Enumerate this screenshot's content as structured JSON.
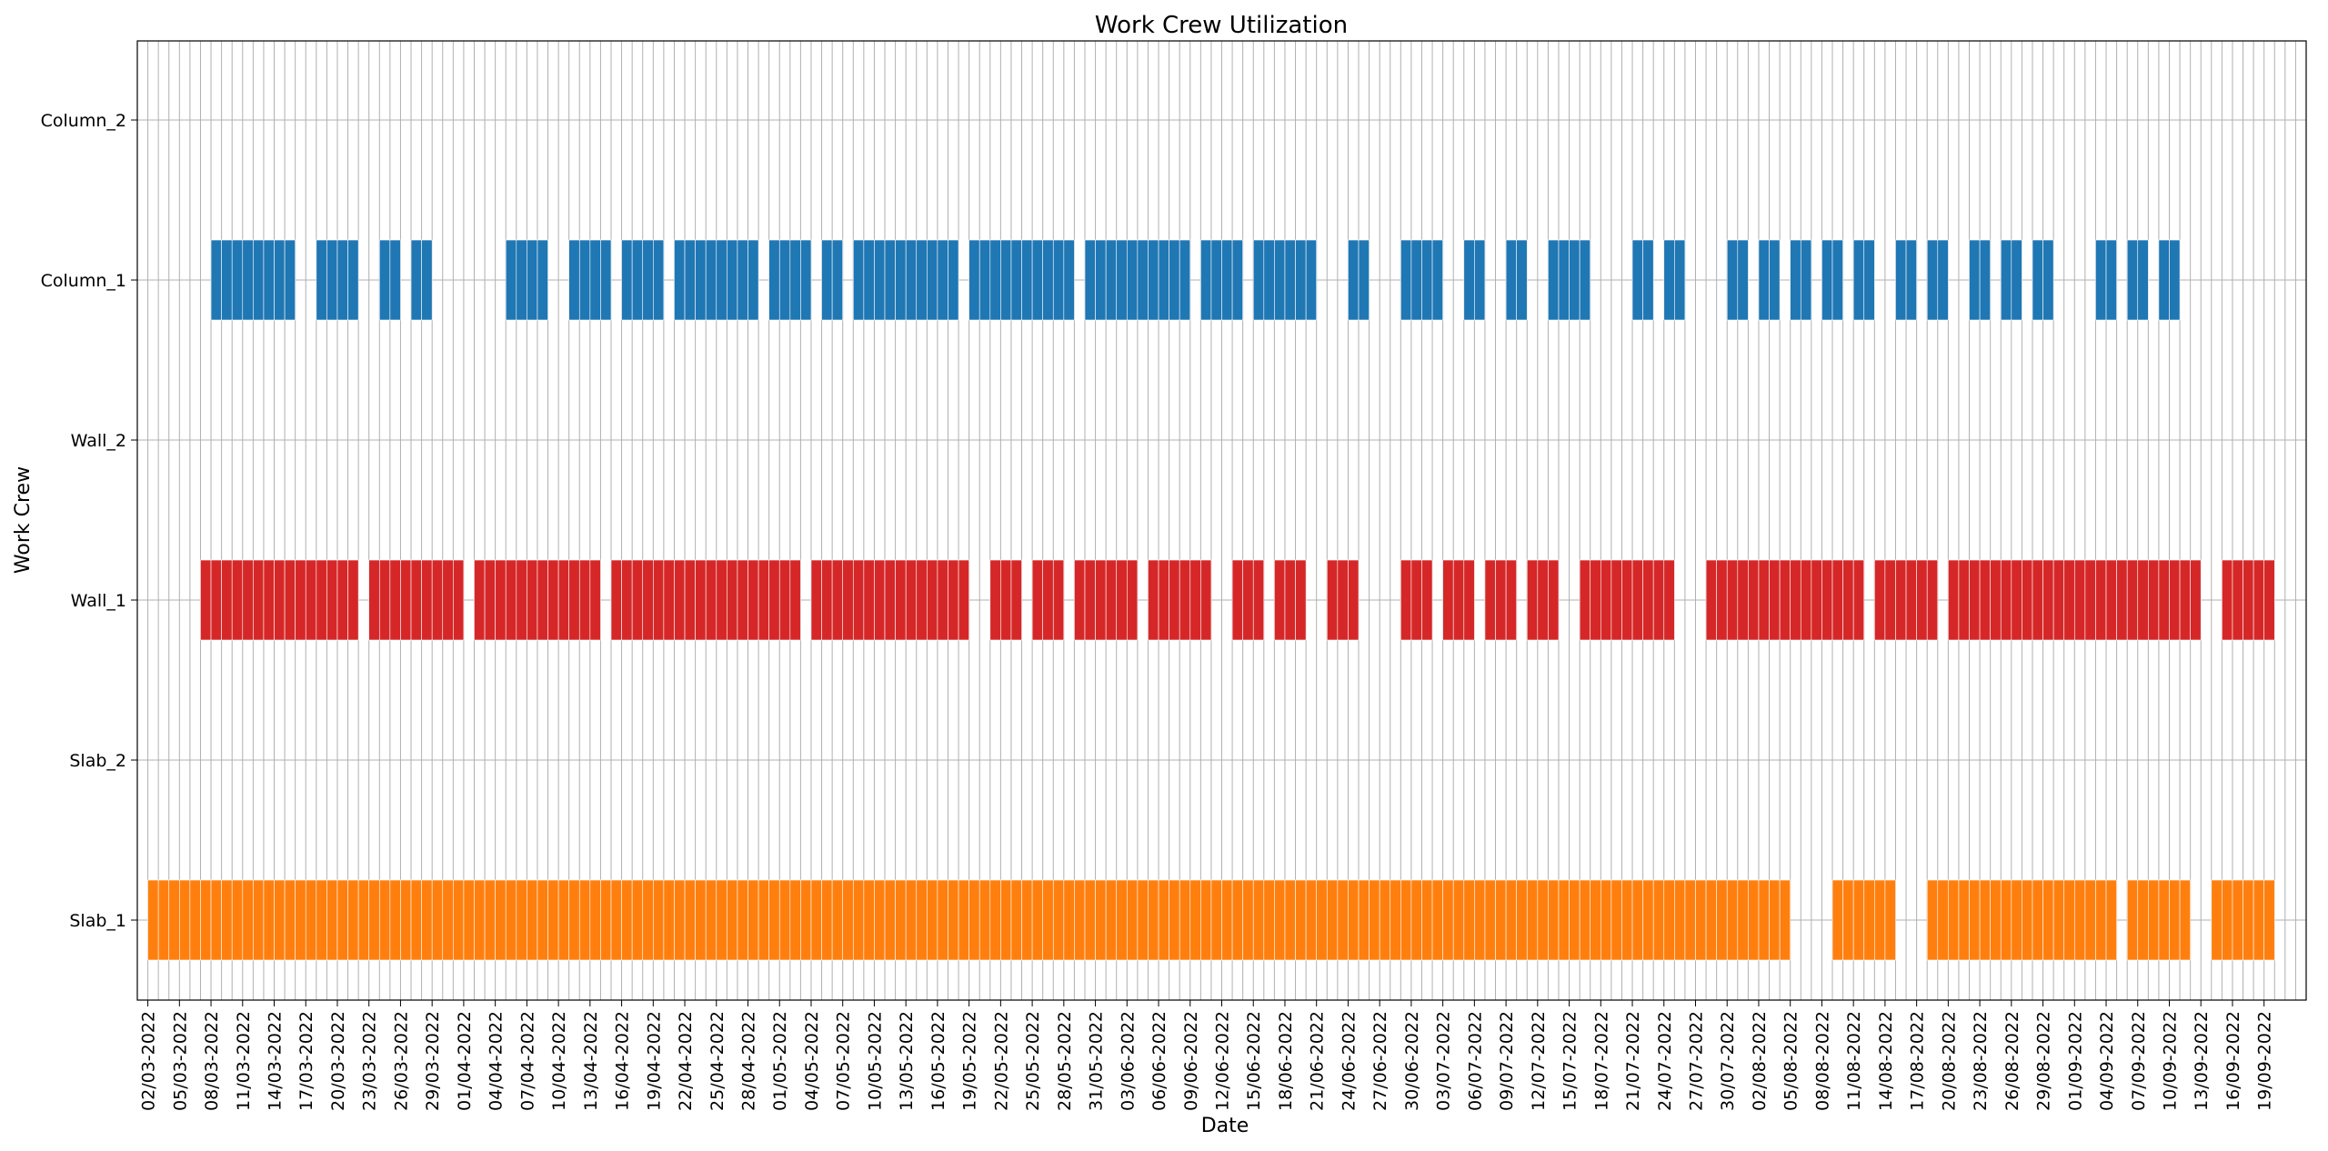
{
  "chart_data": {
    "type": "bar",
    "subtype": "timeline-gantt",
    "title": "Work Crew Utilization",
    "xlabel": "Date",
    "ylabel": "Work Crew",
    "start_date": "2022-03-02",
    "xlim": [
      "2022-03-01",
      "2022-09-23"
    ],
    "x_tick_step_days": 3,
    "x_tick_labels": [
      "02/03-2022",
      "05/03-2022",
      "08/03-2022",
      "11/03-2022",
      "14/03-2022",
      "17/03-2022",
      "20/03-2022",
      "23/03-2022",
      "26/03-2022",
      "29/03-2022",
      "01/04-2022",
      "04/04-2022",
      "07/04-2022",
      "10/04-2022",
      "13/04-2022",
      "16/04-2022",
      "19/04-2022",
      "22/04-2022",
      "25/04-2022",
      "28/04-2022",
      "01/05-2022",
      "04/05-2022",
      "07/05-2022",
      "10/05-2022",
      "13/05-2022",
      "16/05-2022",
      "19/05-2022",
      "22/05-2022",
      "25/05-2022",
      "28/05-2022",
      "31/05-2022",
      "03/06-2022",
      "06/06-2022",
      "09/06-2022",
      "12/06-2022",
      "15/06-2022",
      "18/06-2022",
      "21/06-2022",
      "24/06-2022",
      "27/06-2022",
      "30/06-2022",
      "03/07-2022",
      "06/07-2022",
      "09/07-2022",
      "12/07-2022",
      "15/07-2022",
      "18/07-2022",
      "21/07-2022",
      "24/07-2022",
      "27/07-2022",
      "30/07-2022",
      "02/08-2022",
      "05/08-2022",
      "08/08-2022",
      "11/08-2022",
      "14/08-2022",
      "17/08-2022",
      "20/08-2022",
      "23/08-2022",
      "26/08-2022",
      "29/08-2022",
      "01/09-2022",
      "04/09-2022",
      "07/09-2022",
      "10/09-2022",
      "13/09-2022",
      "16/09-2022",
      "19/09-2022"
    ],
    "categories": [
      "Slab_1",
      "Slab_2",
      "Wall_1",
      "Wall_2",
      "Column_1",
      "Column_2"
    ],
    "grid": true,
    "series": [
      {
        "name": "Slab_1",
        "color": "#ff7f0e",
        "ranges": [
          [
            0,
            156
          ],
          [
            160,
            166
          ],
          [
            169,
            187
          ],
          [
            188,
            194
          ],
          [
            196,
            202
          ]
        ]
      },
      {
        "name": "Slab_2",
        "color": "#ff7f0e",
        "ranges": []
      },
      {
        "name": "Wall_1",
        "color": "#d62728",
        "ranges": [
          [
            5,
            20
          ],
          [
            21,
            30
          ],
          [
            31,
            43
          ],
          [
            44,
            62
          ],
          [
            63,
            78
          ],
          [
            80,
            83
          ],
          [
            84,
            87
          ],
          [
            88,
            94
          ],
          [
            95,
            101
          ],
          [
            103,
            106
          ],
          [
            107,
            110
          ],
          [
            112,
            115
          ],
          [
            119,
            122
          ],
          [
            123,
            126
          ],
          [
            127,
            130
          ],
          [
            131,
            134
          ],
          [
            136,
            145
          ],
          [
            148,
            163
          ],
          [
            164,
            170
          ],
          [
            171,
            195
          ],
          [
            197,
            202
          ]
        ]
      },
      {
        "name": "Wall_2",
        "color": "#d62728",
        "ranges": []
      },
      {
        "name": "Column_1",
        "color": "#1f77b4",
        "ranges": [
          [
            6,
            14
          ],
          [
            16,
            20
          ],
          [
            22,
            24
          ],
          [
            25,
            27
          ],
          [
            34,
            38
          ],
          [
            40,
            44
          ],
          [
            45,
            49
          ],
          [
            50,
            58
          ],
          [
            59,
            63
          ],
          [
            64,
            66
          ],
          [
            67,
            77
          ],
          [
            78,
            88
          ],
          [
            89,
            99
          ],
          [
            100,
            104
          ],
          [
            105,
            111
          ],
          [
            114,
            116
          ],
          [
            119,
            123
          ],
          [
            125,
            127
          ],
          [
            129,
            131
          ],
          [
            133,
            137
          ],
          [
            141,
            143
          ],
          [
            144,
            146
          ],
          [
            150,
            152
          ],
          [
            153,
            155
          ],
          [
            156,
            158
          ],
          [
            159,
            161
          ],
          [
            162,
            164
          ],
          [
            166,
            168
          ],
          [
            169,
            171
          ],
          [
            173,
            175
          ],
          [
            176,
            178
          ],
          [
            179,
            181
          ],
          [
            185,
            187
          ],
          [
            188,
            190
          ],
          [
            191,
            193
          ]
        ]
      },
      {
        "name": "Column_2",
        "color": "#1f77b4",
        "ranges": []
      }
    ]
  }
}
